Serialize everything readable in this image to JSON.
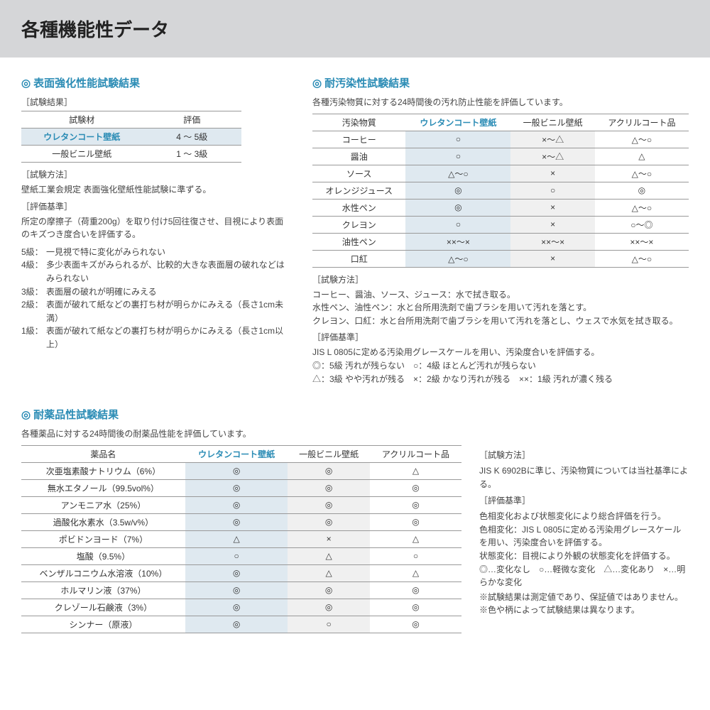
{
  "header": {
    "title": "各種機能性データ"
  },
  "colors": {
    "accent": "#2b8cb5",
    "hl_bg": "#dfe9f0",
    "gray_bg": "#f0f0f0"
  },
  "section1": {
    "title": "表面強化性能試験結果",
    "label_results": "［試験結果］",
    "table": {
      "head": [
        "試験材",
        "評価"
      ],
      "rows": [
        {
          "name": "ウレタンコート壁紙",
          "val": "4 〜 5級",
          "hl": true
        },
        {
          "name": "一般ビニル壁紙",
          "val": "1 〜 3級",
          "hl": false
        }
      ]
    },
    "label_method": "［試験方法］",
    "method": "壁紙工業会規定 表面強化壁紙性能試験に準ずる。",
    "label_criteria": "［評価基準］",
    "criteria": "所定の摩擦子（荷重200g）を取り付け5回往復させ、目視により表面のキズつき度合いを評価する。",
    "grades": [
      [
        "5級：",
        "一見視で特に変化がみられない"
      ],
      [
        "4級：",
        "多少表面キズがみられるが、比較的大きな表面層の破れなどはみられない"
      ],
      [
        "3級：",
        "表面層の破れが明確にみえる"
      ],
      [
        "2級：",
        "表面が破れて紙などの裏打ち材が明らかにみえる（長さ1cm未満）"
      ],
      [
        "1級：",
        "表面が破れて紙などの裏打ち材が明らかにみえる（長さ1cm以上）"
      ]
    ]
  },
  "section2": {
    "title": "耐汚染性試験結果",
    "desc": "各種汚染物質に対する24時間後の汚れ防止性能を評価しています。",
    "table": {
      "head": [
        "汚染物質",
        "ウレタンコート壁紙",
        "一般ビニル壁紙",
        "アクリルコート品"
      ],
      "rows": [
        [
          "コーヒー",
          "○",
          "×〜△",
          "△〜○"
        ],
        [
          "醤油",
          "○",
          "×〜△",
          "△"
        ],
        [
          "ソース",
          "△〜○",
          "×",
          "△〜○"
        ],
        [
          "オレンジジュース",
          "◎",
          "○",
          "◎"
        ],
        [
          "水性ペン",
          "◎",
          "×",
          "△〜○"
        ],
        [
          "クレヨン",
          "○",
          "×",
          "○〜◎"
        ],
        [
          "油性ペン",
          "××〜×",
          "××〜×",
          "××〜×"
        ],
        [
          "口紅",
          "△〜○",
          "×",
          "△〜○"
        ]
      ]
    },
    "label_method": "［試験方法］",
    "method1": "コーヒー、醤油、ソース、ジュース：水で拭き取る。",
    "method2": "水性ペン、油性ペン：水と台所用洗剤で歯ブラシを用いて汚れを落とす。",
    "method3": "クレヨン、口紅：水と台所用洗剤で歯ブラシを用いて汚れを落とし、ウェスで水気を拭き取る。",
    "label_criteria": "［評価基準］",
    "criteria": "JIS L 0805に定める汚染用グレースケールを用い、汚染度合いを評価する。",
    "legend1": "◎：5級 汚れが残らない　○：4級 ほとんど汚れが残らない",
    "legend2": "△：3級 やや汚れが残る　×：2級 かなり汚れが残る　××：1級 汚れが濃く残る"
  },
  "section3": {
    "title": "耐薬品性試験結果",
    "desc": "各種薬品に対する24時間後の耐薬品性能を評価しています。",
    "table": {
      "head": [
        "薬品名",
        "ウレタンコート壁紙",
        "一般ビニル壁紙",
        "アクリルコート品"
      ],
      "rows": [
        [
          "次亜塩素酸ナトリウム（6%）",
          "◎",
          "◎",
          "△"
        ],
        [
          "無水エタノール（99.5vol%）",
          "◎",
          "◎",
          "◎"
        ],
        [
          "アンモニア水（25%）",
          "◎",
          "◎",
          "◎"
        ],
        [
          "過酸化水素水（3.5w/v%）",
          "◎",
          "◎",
          "◎"
        ],
        [
          "ポビドンヨード（7%）",
          "△",
          "×",
          "△"
        ],
        [
          "塩酸（9.5%）",
          "○",
          "△",
          "○"
        ],
        [
          "ベンザルコニウム水溶液（10%）",
          "◎",
          "△",
          "△"
        ],
        [
          "ホルマリン液（37%）",
          "◎",
          "◎",
          "◎"
        ],
        [
          "クレゾール石鹸液（3%）",
          "◎",
          "◎",
          "◎"
        ],
        [
          "シンナー（原液）",
          "◎",
          "○",
          "◎"
        ]
      ]
    },
    "right": {
      "label_method": "［試験方法］",
      "method": "JIS K 6902Bに準じ、汚染物質については当社基準による。",
      "label_criteria": "［評価基準］",
      "criteria1": "色相変化および状態変化により総合評価を行う。",
      "criteria2": "色相変化：JIS L 0805に定める汚染用グレースケールを用い、汚染度合いを評価する。",
      "criteria3": "状態変化：目視により外観の状態変化を評価する。",
      "legend": "◎…変化なし　○…軽微な変化　△…変化あり　×…明らかな変化",
      "note1": "※試験結果は測定値であり、保証値ではありません。",
      "note2": "※色や柄によって試験結果は異なります。"
    }
  }
}
